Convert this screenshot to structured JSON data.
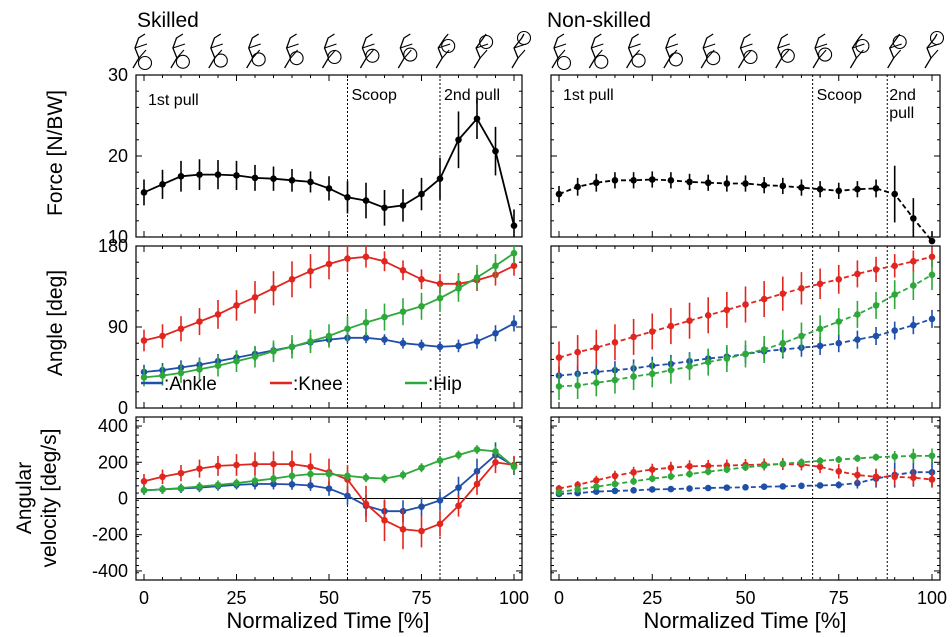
{
  "columns": [
    {
      "title": "Skilled"
    },
    {
      "title": "Non-skilled"
    }
  ],
  "y_labels": {
    "force": "Force [N/BW]",
    "angle": "Angle [deg]",
    "velocity_line1": "Angular",
    "velocity_line2": "velocity [deg/s]"
  },
  "x_label": "Normalized Time [%]",
  "x_ticks": [
    "0",
    "25",
    "50",
    "75",
    "100"
  ],
  "force_ticks": [
    "10",
    "20",
    "30"
  ],
  "angle_ticks": [
    "0",
    "90",
    "180"
  ],
  "velocity_ticks": [
    "-400",
    "-200",
    "0",
    "200",
    "400"
  ],
  "legend": [
    {
      "label": ":Ankle",
      "color": "#1f4fa8"
    },
    {
      "label": ":Knee",
      "color": "#e0261f"
    },
    {
      "label": ":Hip",
      "color": "#2ea83a"
    }
  ],
  "phase_labels": {
    "skilled": [
      "1st pull",
      "Scoop",
      "2nd pull"
    ],
    "nonskilled": [
      "1st pull",
      "Scoop",
      "2nd",
      "pull"
    ]
  },
  "chart_data": [
    {
      "type": "line",
      "panel": "Skilled force",
      "ylabel": "Force [N/BW]",
      "xlim": [
        0,
        100
      ],
      "ylim": [
        10,
        30
      ],
      "phase_boundaries": [
        55,
        80
      ],
      "x": [
        0,
        5,
        10,
        15,
        20,
        25,
        30,
        35,
        40,
        45,
        50,
        55,
        60,
        65,
        70,
        75,
        80,
        85,
        90,
        95,
        100
      ],
      "series": [
        {
          "color": "#000000",
          "dashed": false,
          "values": [
            15.5,
            16.5,
            17.5,
            17.7,
            17.7,
            17.6,
            17.3,
            17.2,
            17.0,
            16.8,
            16.0,
            14.9,
            14.5,
            13.6,
            13.9,
            15.3,
            17.2,
            22.0,
            24.6,
            20.6,
            11.4
          ],
          "errors": [
            1.6,
            1.8,
            1.9,
            1.9,
            1.8,
            1.8,
            1.6,
            1.5,
            1.4,
            1.3,
            1.5,
            2.0,
            2.2,
            2.2,
            2.0,
            2.0,
            2.6,
            3.5,
            2.5,
            3.0,
            2.0
          ]
        }
      ]
    },
    {
      "type": "line",
      "panel": "Non-skilled force",
      "ylabel": "Force [N/BW]",
      "xlim": [
        0,
        100
      ],
      "ylim": [
        10,
        30
      ],
      "phase_boundaries": [
        68,
        88
      ],
      "x": [
        0,
        5,
        10,
        15,
        20,
        25,
        30,
        35,
        40,
        45,
        50,
        55,
        60,
        65,
        70,
        75,
        80,
        85,
        90,
        95,
        100
      ],
      "series": [
        {
          "color": "#000000",
          "dashed": true,
          "values": [
            15.3,
            16.2,
            16.7,
            17.0,
            17.0,
            17.1,
            17.0,
            16.8,
            16.7,
            16.6,
            16.6,
            16.4,
            16.3,
            16.1,
            15.9,
            15.7,
            15.9,
            16.0,
            15.3,
            12.3,
            9.5
          ],
          "errors": [
            1.0,
            1.1,
            1.1,
            1.0,
            1.0,
            1.0,
            1.0,
            1.0,
            1.0,
            1.0,
            1.0,
            1.0,
            1.0,
            1.0,
            1.0,
            1.0,
            1.0,
            1.1,
            3.5,
            2.5,
            1.2
          ]
        }
      ]
    },
    {
      "type": "line",
      "panel": "Skilled angle",
      "ylabel": "Angle [deg]",
      "xlim": [
        0,
        100
      ],
      "ylim": [
        0,
        180
      ],
      "phase_boundaries": [
        55,
        80
      ],
      "x": [
        0,
        5,
        10,
        15,
        20,
        25,
        30,
        35,
        40,
        45,
        50,
        55,
        60,
        65,
        70,
        75,
        80,
        85,
        90,
        95,
        100
      ],
      "series": [
        {
          "name": "Ankle",
          "color": "#1f4fa8",
          "dashed": false,
          "values": [
            40,
            42,
            45,
            48,
            52,
            56,
            60,
            64,
            68,
            73,
            76,
            78,
            78,
            76,
            72,
            70,
            68,
            69,
            74,
            83,
            94
          ],
          "errors": [
            8,
            8,
            8,
            8,
            8,
            8,
            8,
            8,
            8,
            8,
            7,
            6,
            6,
            6,
            6,
            6,
            6,
            7,
            8,
            9,
            9
          ]
        },
        {
          "name": "Knee",
          "color": "#e0261f",
          "dashed": false,
          "values": [
            75,
            80,
            88,
            96,
            104,
            114,
            123,
            133,
            143,
            152,
            160,
            166,
            168,
            163,
            153,
            143,
            138,
            138,
            142,
            148,
            158
          ],
          "errors": [
            12,
            13,
            14,
            15,
            16,
            17,
            18,
            19,
            20,
            19,
            17,
            15,
            12,
            11,
            11,
            11,
            11,
            12,
            12,
            12,
            11
          ]
        },
        {
          "name": "Hip",
          "color": "#2ea83a",
          "dashed": false,
          "values": [
            34,
            36,
            39,
            43,
            47,
            52,
            57,
            63,
            68,
            74,
            80,
            88,
            95,
            101,
            107,
            113,
            122,
            133,
            145,
            158,
            172
          ],
          "errors": [
            10,
            11,
            11,
            12,
            12,
            12,
            12,
            12,
            13,
            13,
            13,
            14,
            15,
            15,
            15,
            15,
            15,
            15,
            14,
            13,
            12
          ]
        }
      ]
    },
    {
      "type": "line",
      "panel": "Non-skilled angle",
      "ylabel": "Angle [deg]",
      "xlim": [
        0,
        100
      ],
      "ylim": [
        0,
        180
      ],
      "phase_boundaries": [
        68,
        88
      ],
      "x": [
        0,
        5,
        10,
        15,
        20,
        25,
        30,
        35,
        40,
        45,
        50,
        55,
        60,
        65,
        70,
        75,
        80,
        85,
        90,
        95,
        100
      ],
      "series": [
        {
          "name": "Ankle",
          "color": "#1f4fa8",
          "dashed": true,
          "values": [
            36,
            38,
            40,
            42,
            44,
            47,
            49,
            52,
            55,
            57,
            60,
            63,
            65,
            67,
            69,
            72,
            76,
            80,
            86,
            92,
            99
          ],
          "errors": [
            10,
            10,
            10,
            10,
            10,
            10,
            10,
            10,
            10,
            10,
            10,
            10,
            10,
            10,
            10,
            10,
            10,
            10,
            10,
            10,
            10
          ]
        },
        {
          "name": "Knee",
          "color": "#e0261f",
          "dashed": true,
          "values": [
            56,
            62,
            67,
            73,
            79,
            85,
            91,
            97,
            103,
            109,
            115,
            121,
            127,
            133,
            138,
            143,
            149,
            154,
            158,
            163,
            168
          ],
          "errors": [
            18,
            19,
            20,
            20,
            20,
            20,
            20,
            20,
            20,
            20,
            20,
            20,
            19,
            18,
            17,
            16,
            15,
            14,
            13,
            12,
            11
          ]
        },
        {
          "name": "Hip",
          "color": "#2ea83a",
          "dashed": true,
          "values": [
            24,
            25,
            28,
            31,
            35,
            38,
            42,
            46,
            51,
            55,
            60,
            65,
            72,
            80,
            88,
            96,
            104,
            114,
            126,
            136,
            148
          ],
          "errors": [
            15,
            15,
            15,
            15,
            15,
            15,
            15,
            15,
            15,
            15,
            15,
            15,
            15,
            15,
            15,
            15,
            15,
            15,
            16,
            16,
            17
          ]
        }
      ]
    },
    {
      "type": "line",
      "panel": "Skilled angular velocity",
      "ylabel": "Angular velocity [deg/s]",
      "xlim": [
        0,
        100
      ],
      "ylim": [
        -450,
        450
      ],
      "phase_boundaries": [
        55,
        80
      ],
      "x": [
        0,
        5,
        10,
        15,
        20,
        25,
        30,
        35,
        40,
        45,
        50,
        55,
        60,
        65,
        70,
        75,
        80,
        85,
        90,
        95,
        100
      ],
      "series": [
        {
          "name": "Ankle",
          "color": "#1f4fa8",
          "dashed": false,
          "values": [
            45,
            50,
            55,
            60,
            68,
            75,
            80,
            80,
            78,
            72,
            55,
            15,
            -40,
            -70,
            -70,
            -45,
            -10,
            60,
            150,
            240,
            180
          ],
          "errors": [
            25,
            25,
            25,
            25,
            25,
            25,
            30,
            30,
            30,
            30,
            40,
            50,
            60,
            60,
            60,
            50,
            50,
            60,
            70,
            70,
            50
          ]
        },
        {
          "name": "Knee",
          "color": "#e0261f",
          "dashed": false,
          "values": [
            95,
            120,
            140,
            165,
            180,
            185,
            190,
            190,
            190,
            175,
            145,
            105,
            -30,
            -120,
            -170,
            -180,
            -140,
            -40,
            80,
            200,
            185
          ],
          "errors": [
            40,
            40,
            45,
            50,
            55,
            60,
            65,
            70,
            75,
            75,
            75,
            80,
            100,
            115,
            110,
            90,
            70,
            60,
            60,
            60,
            50
          ]
        },
        {
          "name": "Hip",
          "color": "#2ea83a",
          "dashed": false,
          "values": [
            45,
            50,
            58,
            66,
            75,
            85,
            98,
            110,
            125,
            135,
            135,
            125,
            115,
            110,
            130,
            170,
            210,
            240,
            270,
            260,
            175
          ],
          "errors": [
            25,
            25,
            25,
            25,
            25,
            25,
            25,
            25,
            25,
            25,
            25,
            25,
            25,
            25,
            25,
            25,
            25,
            25,
            25,
            30,
            40
          ]
        }
      ]
    },
    {
      "type": "line",
      "panel": "Non-skilled angular velocity",
      "ylabel": "Angular velocity [deg/s]",
      "xlim": [
        0,
        100
      ],
      "ylim": [
        -450,
        450
      ],
      "phase_boundaries": [
        68,
        88
      ],
      "x": [
        0,
        5,
        10,
        15,
        20,
        25,
        30,
        35,
        40,
        45,
        50,
        55,
        60,
        65,
        70,
        75,
        80,
        85,
        90,
        95,
        100
      ],
      "series": [
        {
          "name": "Ankle",
          "color": "#1f4fa8",
          "dashed": true,
          "values": [
            25,
            30,
            38,
            42,
            45,
            50,
            52,
            55,
            58,
            60,
            62,
            65,
            67,
            70,
            72,
            75,
            85,
            110,
            130,
            145,
            145
          ],
          "errors": [
            15,
            15,
            15,
            15,
            15,
            15,
            15,
            15,
            15,
            15,
            15,
            15,
            15,
            15,
            15,
            20,
            30,
            50,
            70,
            80,
            80
          ]
        },
        {
          "name": "Knee",
          "color": "#e0261f",
          "dashed": true,
          "values": [
            55,
            75,
            100,
            125,
            145,
            160,
            170,
            178,
            180,
            182,
            185,
            188,
            190,
            188,
            175,
            150,
            130,
            120,
            120,
            115,
            105
          ],
          "errors": [
            20,
            22,
            25,
            28,
            30,
            32,
            33,
            33,
            33,
            33,
            33,
            33,
            33,
            33,
            35,
            40,
            45,
            45,
            45,
            45,
            45
          ]
        },
        {
          "name": "Hip",
          "color": "#2ea83a",
          "dashed": true,
          "values": [
            35,
            50,
            65,
            80,
            95,
            110,
            122,
            135,
            148,
            160,
            172,
            182,
            192,
            200,
            208,
            215,
            222,
            228,
            232,
            235,
            236
          ],
          "errors": [
            20,
            20,
            20,
            20,
            20,
            20,
            20,
            20,
            20,
            20,
            20,
            20,
            20,
            20,
            20,
            20,
            20,
            20,
            30,
            40,
            40
          ]
        }
      ]
    }
  ]
}
